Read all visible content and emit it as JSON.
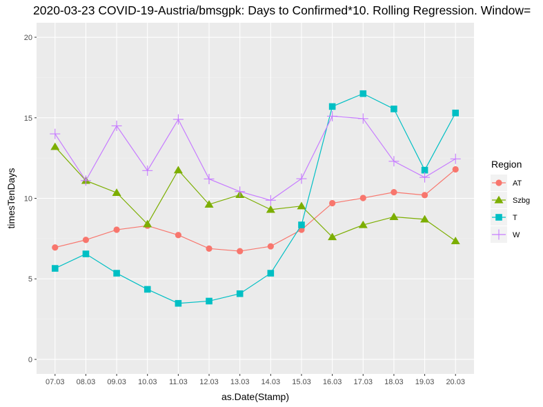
{
  "chart_data": {
    "type": "line",
    "title": "2020-03-23 COVID-19-Austria/bmsgpk: Days to Confirmed*10. Rolling Regression. Window=",
    "xlabel": "as.Date(Stamp)",
    "ylabel": "timesTenDays",
    "categories": [
      "07.03",
      "08.03",
      "09.03",
      "10.03",
      "11.03",
      "12.03",
      "13.03",
      "14.03",
      "15.03",
      "16.03",
      "17.03",
      "18.03",
      "19.03",
      "20.03"
    ],
    "ylim": [
      -0.9,
      20.9
    ],
    "yticks": [
      0,
      5,
      10,
      15,
      20
    ],
    "grid": true,
    "legend": {
      "title": "Region",
      "position": "right"
    },
    "series": [
      {
        "name": "AT",
        "color": "#F8766D",
        "shape": "circle",
        "values": [
          6.95,
          7.42,
          8.05,
          8.3,
          7.72,
          6.88,
          6.72,
          7.02,
          8.05,
          9.7,
          10.02,
          10.38,
          10.2,
          11.8
        ]
      },
      {
        "name": "Szbg",
        "color": "#7CAE00",
        "shape": "triangle",
        "values": [
          13.2,
          11.1,
          10.35,
          8.4,
          11.75,
          9.62,
          10.22,
          9.3,
          9.52,
          7.6,
          8.35,
          8.85,
          8.7,
          7.35
        ]
      },
      {
        "name": "T",
        "color": "#00BFC4",
        "shape": "square",
        "values": [
          5.65,
          6.55,
          5.35,
          4.35,
          3.48,
          3.62,
          4.08,
          5.35,
          8.35,
          15.7,
          16.5,
          15.55,
          11.75,
          15.3
        ]
      },
      {
        "name": "W",
        "color": "#C77CFF",
        "shape": "plus",
        "values": [
          14.0,
          11.1,
          14.5,
          11.72,
          14.9,
          11.2,
          10.42,
          9.88,
          11.22,
          15.1,
          14.95,
          12.3,
          11.3,
          12.45
        ]
      }
    ]
  }
}
